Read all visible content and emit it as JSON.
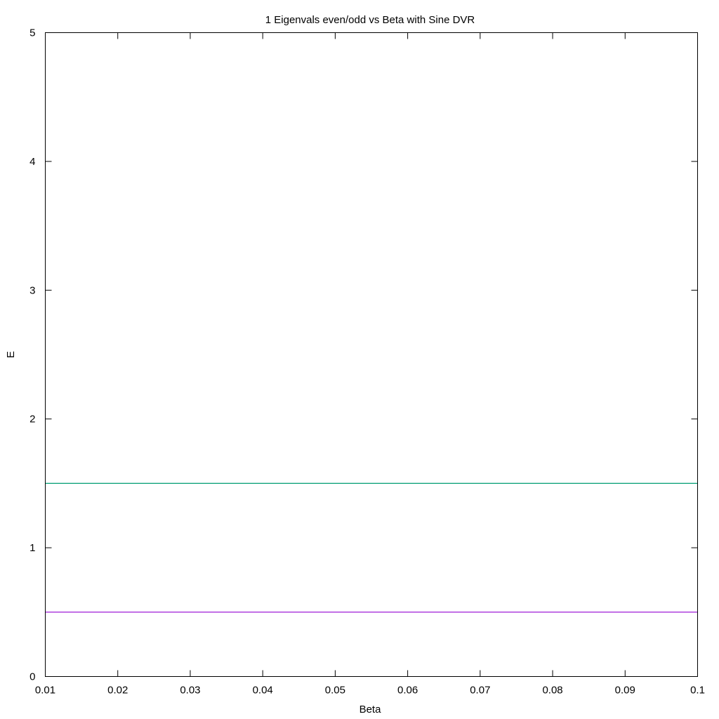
{
  "chart_data": {
    "type": "line",
    "title": "1 Eigenvals even/odd vs Beta with Sine DVR",
    "xlabel": "Beta",
    "ylabel": "E",
    "xlim": [
      0.01,
      0.1
    ],
    "ylim": [
      0,
      5
    ],
    "xticks": [
      "0.01",
      "0.02",
      "0.03",
      "0.04",
      "0.05",
      "0.06",
      "0.07",
      "0.08",
      "0.09",
      "0.1"
    ],
    "yticks": [
      "0",
      "1",
      "2",
      "3",
      "4",
      "5"
    ],
    "grid": false,
    "legend": "none",
    "series": [
      {
        "x": [
          0.01,
          0.1
        ],
        "y": [
          0.5,
          0.5
        ],
        "color": "#9400d3"
      },
      {
        "x": [
          0.01,
          0.1
        ],
        "y": [
          1.5,
          1.5
        ],
        "color": "#009e73"
      }
    ]
  }
}
